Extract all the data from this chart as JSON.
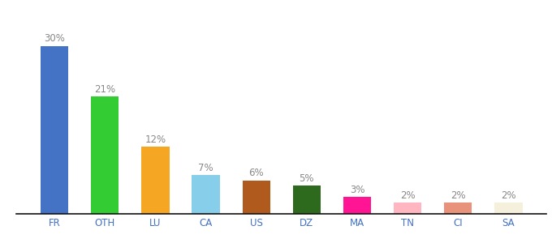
{
  "categories": [
    "FR",
    "OTH",
    "LU",
    "CA",
    "US",
    "DZ",
    "MA",
    "TN",
    "CI",
    "SA"
  ],
  "values": [
    30,
    21,
    12,
    7,
    6,
    5,
    3,
    2,
    2,
    2
  ],
  "bar_colors": [
    "#4472c4",
    "#33cc33",
    "#f5a623",
    "#87ceeb",
    "#b05a1e",
    "#2d6a1e",
    "#ff1493",
    "#ffb6c1",
    "#e8927c",
    "#f5f0dc"
  ],
  "labels": [
    "30%",
    "21%",
    "12%",
    "7%",
    "6%",
    "5%",
    "3%",
    "2%",
    "2%",
    "2%"
  ],
  "ylim": [
    0,
    36
  ],
  "background_color": "#ffffff",
  "label_color": "#888888",
  "label_fontsize": 8.5,
  "tick_fontsize": 8.5,
  "tick_color": "#4472c4",
  "bar_width": 0.55
}
